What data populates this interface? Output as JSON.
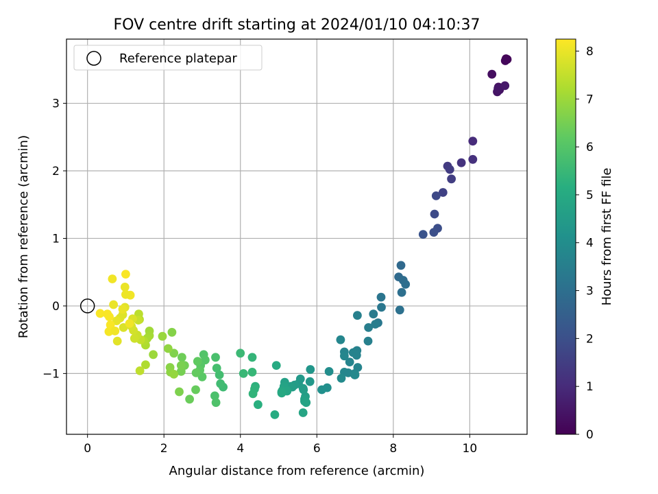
{
  "chart_data": {
    "type": "scatter",
    "title": "FOV centre drift starting at 2024/01/10 04:10:37",
    "xlabel": "Angular distance from reference (arcmin)",
    "ylabel": "Rotation from reference (arcmin)",
    "xlim": [
      -0.55,
      11.5
    ],
    "ylim": [
      -1.9,
      3.95
    ],
    "xticks": [
      0,
      2,
      4,
      6,
      8,
      10
    ],
    "xtick_labels": [
      "0",
      "2",
      "4",
      "6",
      "8",
      "10"
    ],
    "yticks": [
      -1,
      0,
      1,
      2,
      3
    ],
    "ytick_labels": [
      "−1",
      "0",
      "1",
      "2",
      "3"
    ],
    "grid": true,
    "legend": {
      "placement": "top-left",
      "entries": [
        {
          "label": "Reference platepar",
          "marker": "open-circle"
        }
      ]
    },
    "reference_point": {
      "x": 0,
      "y": 0,
      "label": "Reference platepar"
    },
    "colorbar": {
      "label": "Hours from first FF file",
      "colormap": "viridis",
      "range": [
        0,
        8.25
      ],
      "ticks": [
        0,
        1,
        2,
        3,
        4,
        5,
        6,
        7,
        8
      ],
      "tick_labels": [
        "0",
        "1",
        "2",
        "3",
        "4",
        "5",
        "6",
        "7",
        "8"
      ]
    },
    "series": [
      {
        "x": [
          10.95,
          10.98,
          10.93,
          10.58,
          10.75,
          10.78,
          10.72,
          10.74,
          10.92,
          10.08,
          10.08,
          9.78,
          9.42,
          9.48,
          9.52,
          9.3,
          9.12,
          9.08,
          9.16,
          9.06,
          8.78,
          8.2,
          8.14,
          8.26,
          8.32,
          8.22,
          8.17,
          7.68,
          7.69,
          7.6,
          7.48,
          7.53,
          7.35,
          7.34,
          7.06,
          7.05,
          7.03,
          6.95,
          6.72,
          6.62,
          6.72,
          6.72,
          7.04,
          7.07,
          6.86,
          6.99,
          6.82,
          6.99,
          7.0,
          6.64,
          6.32,
          6.27,
          6.13,
          5.83,
          5.82,
          5.57,
          5.52,
          5.42,
          5.36,
          5.32,
          5.16,
          5.2,
          5.14,
          5.1,
          5.22,
          5.08,
          5.08,
          5.64,
          5.65,
          5.7,
          5.68,
          5.68,
          5.72,
          5.64,
          4.94,
          4.9,
          4.46,
          4.39,
          4.37,
          4.33,
          4.31,
          4.31,
          4.08,
          4.0,
          3.55,
          3.48,
          3.45,
          3.38,
          3.35,
          3.33,
          3.36,
          3.04,
          3.08,
          2.96,
          3.0,
          2.94,
          2.88,
          2.84,
          2.83,
          2.67,
          2.47,
          2.54,
          2.45,
          2.45,
          2.4,
          2.26,
          2.21,
          2.16,
          2.17,
          2.11,
          2.26,
          1.96,
          1.72,
          1.62,
          1.62,
          1.56,
          1.52,
          1.52,
          1.48,
          1.36,
          1.34,
          1.37,
          1.39,
          1.33,
          1.3,
          1.23,
          1.2,
          1.15,
          1.18,
          0.92,
          0.98,
          1.0,
          1.12,
          0.85,
          0.78,
          0.76,
          0.68,
          0.65,
          0.56,
          0.57,
          0.6,
          0.52,
          0.33,
          0.94,
          0.98,
          1.0,
          1.1,
          0.92,
          0.72
        ],
        "y": [
          3.66,
          3.65,
          3.63,
          3.43,
          3.24,
          3.2,
          3.17,
          3.22,
          3.26,
          2.44,
          2.17,
          2.12,
          2.07,
          2.02,
          1.88,
          1.68,
          1.63,
          1.36,
          1.15,
          1.09,
          1.06,
          0.6,
          0.43,
          0.38,
          0.32,
          0.2,
          -0.06,
          0.13,
          -0.02,
          -0.25,
          -0.12,
          -0.27,
          -0.32,
          -0.52,
          -0.14,
          -0.66,
          -0.67,
          -0.69,
          -0.68,
          -0.5,
          -0.74,
          -0.98,
          -0.73,
          -0.91,
          -0.83,
          -1.0,
          -0.99,
          -1.02,
          -1.02,
          -1.07,
          -0.97,
          -1.21,
          -1.24,
          -0.94,
          -1.12,
          -1.08,
          -1.15,
          -1.17,
          -1.2,
          -1.19,
          -1.13,
          -1.23,
          -1.19,
          -1.25,
          -1.26,
          -1.27,
          -1.29,
          -1.22,
          -1.24,
          -1.34,
          -1.38,
          -1.41,
          -1.43,
          -1.58,
          -0.88,
          -1.61,
          -1.46,
          -1.19,
          -1.23,
          -1.3,
          -0.76,
          -0.98,
          -1.0,
          -0.7,
          -1.2,
          -1.15,
          -1.02,
          -0.92,
          -0.76,
          -1.33,
          -1.43,
          -0.72,
          -0.8,
          -0.88,
          -1.05,
          -0.95,
          -0.82,
          -0.99,
          -1.24,
          -1.38,
          -0.76,
          -0.88,
          -0.97,
          -0.88,
          -1.27,
          -0.7,
          -0.39,
          -0.91,
          -0.98,
          -0.63,
          -1.01,
          -0.45,
          -0.72,
          -0.37,
          -0.44,
          -0.48,
          -0.58,
          -0.87,
          -0.52,
          -0.2,
          -0.12,
          -0.96,
          -0.5,
          -0.21,
          -0.43,
          -0.48,
          -0.36,
          -0.3,
          -0.19,
          -0.13,
          -0.02,
          0.47,
          0.16,
          -0.18,
          -0.52,
          -0.22,
          0.02,
          0.4,
          -0.38,
          -0.16,
          -0.28,
          -0.12,
          -0.11,
          -0.32,
          0.28,
          0.17,
          -0.26,
          -0.05,
          -0.37
        ],
        "hours": [
          0.05,
          0.1,
          0.15,
          0.3,
          0.35,
          0.4,
          0.45,
          0.5,
          0.55,
          1.0,
          1.15,
          1.2,
          1.4,
          1.45,
          1.5,
          1.6,
          1.8,
          1.85,
          1.95,
          2.0,
          2.1,
          2.8,
          2.85,
          2.9,
          2.95,
          3.0,
          3.05,
          3.2,
          3.25,
          3.3,
          3.4,
          3.45,
          3.5,
          3.55,
          3.55,
          3.6,
          3.6,
          3.65,
          3.7,
          3.75,
          3.75,
          3.8,
          3.65,
          3.7,
          3.7,
          3.75,
          3.75,
          3.8,
          3.85,
          3.9,
          4.0,
          4.05,
          4.1,
          4.3,
          4.35,
          4.4,
          4.45,
          4.5,
          4.55,
          4.6,
          4.65,
          4.7,
          4.75,
          4.8,
          4.85,
          4.9,
          4.95,
          4.5,
          4.55,
          4.6,
          4.65,
          4.7,
          4.75,
          4.8,
          5.0,
          5.05,
          5.2,
          5.25,
          5.3,
          5.35,
          5.4,
          5.45,
          5.5,
          5.55,
          5.6,
          5.65,
          5.7,
          5.75,
          5.8,
          5.85,
          5.9,
          5.95,
          6.0,
          6.05,
          6.1,
          6.15,
          6.2,
          6.25,
          6.3,
          6.35,
          6.4,
          6.45,
          6.5,
          6.55,
          6.6,
          6.65,
          6.7,
          6.75,
          6.8,
          6.85,
          6.9,
          6.95,
          7.0,
          7.05,
          7.1,
          7.15,
          7.2,
          7.25,
          7.3,
          7.35,
          7.4,
          7.45,
          7.5,
          7.55,
          7.6,
          7.65,
          7.7,
          7.75,
          7.8,
          7.85,
          7.9,
          8.2,
          8.1,
          7.85,
          7.9,
          7.95,
          8.0,
          8.1,
          8.15,
          8.2,
          8.2,
          8.2,
          8.2,
          7.8,
          8.0,
          8.05,
          8.1,
          8.0,
          8.1
        ]
      }
    ]
  }
}
